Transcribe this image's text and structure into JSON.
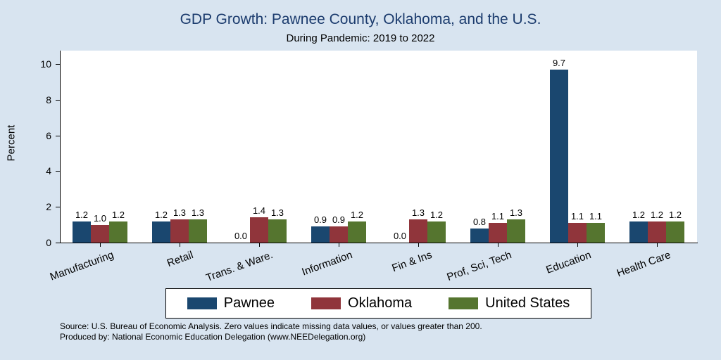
{
  "title": "GDP Growth: Pawnee County, Oklahoma, and the U.S.",
  "subtitle": "During Pandemic: 2019 to 2022",
  "chart_data": {
    "type": "bar",
    "title": "GDP Growth: Pawnee County, Oklahoma, and the U.S.",
    "subtitle": "During Pandemic: 2019 to 2022",
    "ylabel": "Percent",
    "xlabel": "",
    "ylim": [
      0,
      10.75
    ],
    "yticks": [
      0,
      2,
      4,
      6,
      8,
      10
    ],
    "grid": false,
    "legend_position": "bottom",
    "categories": [
      "Manufacturing",
      "Retail",
      "Trans. & Ware.",
      "Information",
      "Fin & Ins",
      "Prof, Sci, Tech",
      "Education",
      "Health Care"
    ],
    "series": [
      {
        "name": "Pawnee",
        "color": "#1a476f",
        "values": [
          1.2,
          1.2,
          0.0,
          0.9,
          0.0,
          0.8,
          9.7,
          1.2
        ]
      },
      {
        "name": "Oklahoma",
        "color": "#90353b",
        "values": [
          1.0,
          1.3,
          1.4,
          0.9,
          1.3,
          1.1,
          1.1,
          1.2
        ]
      },
      {
        "name": "United States",
        "color": "#55752f",
        "values": [
          1.2,
          1.3,
          1.3,
          1.2,
          1.2,
          1.3,
          1.1,
          1.2
        ]
      }
    ]
  },
  "colors": {
    "background": "#d8e4f0",
    "plot_background": "#ffffff",
    "title": "#1c3c6e",
    "axis": "#000000"
  },
  "footer": {
    "line1": "Source: U.S. Bureau of Economic Analysis. Zero values indicate missing data values, or values greater than 200.",
    "line2": "Produced by: National Economic Education Delegation (www.NEEDelegation.org)"
  }
}
